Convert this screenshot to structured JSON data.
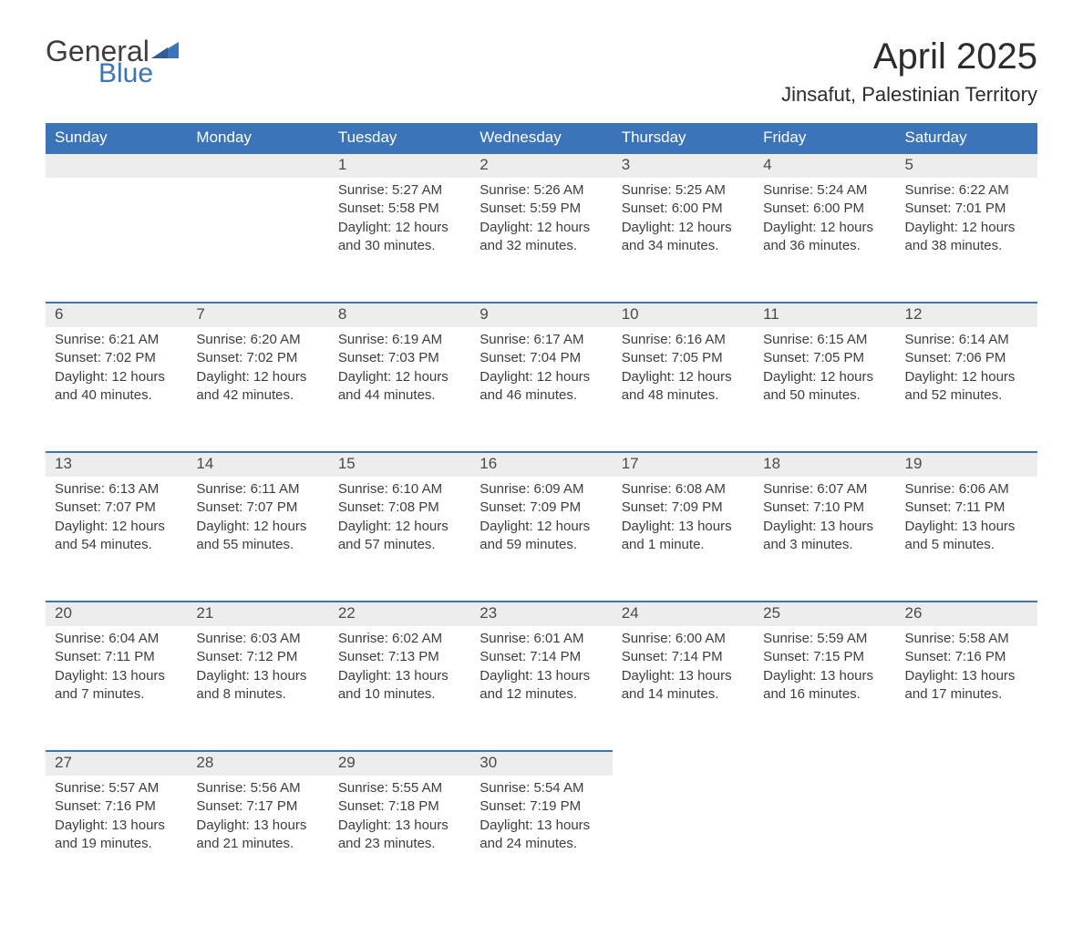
{
  "brand": {
    "general": "General",
    "blue": "Blue",
    "accent": "#3b74b9"
  },
  "title": "April 2025",
  "location": "Jinsafut, Palestinian Territory",
  "day_headers": [
    "Sunday",
    "Monday",
    "Tuesday",
    "Wednesday",
    "Thursday",
    "Friday",
    "Saturday"
  ],
  "colors": {
    "header_bg": "#3b74b9",
    "header_text": "#ffffff",
    "daynum_bg": "#ededed",
    "daynum_border": "#3b74b9",
    "text": "#3d3d3d",
    "background": "#ffffff"
  },
  "weeks": [
    [
      null,
      null,
      {
        "n": "1",
        "sunrise": "5:27 AM",
        "sunset": "5:58 PM",
        "daylight": "12 hours and 30 minutes."
      },
      {
        "n": "2",
        "sunrise": "5:26 AM",
        "sunset": "5:59 PM",
        "daylight": "12 hours and 32 minutes."
      },
      {
        "n": "3",
        "sunrise": "5:25 AM",
        "sunset": "6:00 PM",
        "daylight": "12 hours and 34 minutes."
      },
      {
        "n": "4",
        "sunrise": "5:24 AM",
        "sunset": "6:00 PM",
        "daylight": "12 hours and 36 minutes."
      },
      {
        "n": "5",
        "sunrise": "6:22 AM",
        "sunset": "7:01 PM",
        "daylight": "12 hours and 38 minutes."
      }
    ],
    [
      {
        "n": "6",
        "sunrise": "6:21 AM",
        "sunset": "7:02 PM",
        "daylight": "12 hours and 40 minutes."
      },
      {
        "n": "7",
        "sunrise": "6:20 AM",
        "sunset": "7:02 PM",
        "daylight": "12 hours and 42 minutes."
      },
      {
        "n": "8",
        "sunrise": "6:19 AM",
        "sunset": "7:03 PM",
        "daylight": "12 hours and 44 minutes."
      },
      {
        "n": "9",
        "sunrise": "6:17 AM",
        "sunset": "7:04 PM",
        "daylight": "12 hours and 46 minutes."
      },
      {
        "n": "10",
        "sunrise": "6:16 AM",
        "sunset": "7:05 PM",
        "daylight": "12 hours and 48 minutes."
      },
      {
        "n": "11",
        "sunrise": "6:15 AM",
        "sunset": "7:05 PM",
        "daylight": "12 hours and 50 minutes."
      },
      {
        "n": "12",
        "sunrise": "6:14 AM",
        "sunset": "7:06 PM",
        "daylight": "12 hours and 52 minutes."
      }
    ],
    [
      {
        "n": "13",
        "sunrise": "6:13 AM",
        "sunset": "7:07 PM",
        "daylight": "12 hours and 54 minutes."
      },
      {
        "n": "14",
        "sunrise": "6:11 AM",
        "sunset": "7:07 PM",
        "daylight": "12 hours and 55 minutes."
      },
      {
        "n": "15",
        "sunrise": "6:10 AM",
        "sunset": "7:08 PM",
        "daylight": "12 hours and 57 minutes."
      },
      {
        "n": "16",
        "sunrise": "6:09 AM",
        "sunset": "7:09 PM",
        "daylight": "12 hours and 59 minutes."
      },
      {
        "n": "17",
        "sunrise": "6:08 AM",
        "sunset": "7:09 PM",
        "daylight": "13 hours and 1 minute."
      },
      {
        "n": "18",
        "sunrise": "6:07 AM",
        "sunset": "7:10 PM",
        "daylight": "13 hours and 3 minutes."
      },
      {
        "n": "19",
        "sunrise": "6:06 AM",
        "sunset": "7:11 PM",
        "daylight": "13 hours and 5 minutes."
      }
    ],
    [
      {
        "n": "20",
        "sunrise": "6:04 AM",
        "sunset": "7:11 PM",
        "daylight": "13 hours and 7 minutes."
      },
      {
        "n": "21",
        "sunrise": "6:03 AM",
        "sunset": "7:12 PM",
        "daylight": "13 hours and 8 minutes."
      },
      {
        "n": "22",
        "sunrise": "6:02 AM",
        "sunset": "7:13 PM",
        "daylight": "13 hours and 10 minutes."
      },
      {
        "n": "23",
        "sunrise": "6:01 AM",
        "sunset": "7:14 PM",
        "daylight": "13 hours and 12 minutes."
      },
      {
        "n": "24",
        "sunrise": "6:00 AM",
        "sunset": "7:14 PM",
        "daylight": "13 hours and 14 minutes."
      },
      {
        "n": "25",
        "sunrise": "5:59 AM",
        "sunset": "7:15 PM",
        "daylight": "13 hours and 16 minutes."
      },
      {
        "n": "26",
        "sunrise": "5:58 AM",
        "sunset": "7:16 PM",
        "daylight": "13 hours and 17 minutes."
      }
    ],
    [
      {
        "n": "27",
        "sunrise": "5:57 AM",
        "sunset": "7:16 PM",
        "daylight": "13 hours and 19 minutes."
      },
      {
        "n": "28",
        "sunrise": "5:56 AM",
        "sunset": "7:17 PM",
        "daylight": "13 hours and 21 minutes."
      },
      {
        "n": "29",
        "sunrise": "5:55 AM",
        "sunset": "7:18 PM",
        "daylight": "13 hours and 23 minutes."
      },
      {
        "n": "30",
        "sunrise": "5:54 AM",
        "sunset": "7:19 PM",
        "daylight": "13 hours and 24 minutes."
      },
      null,
      null,
      null
    ]
  ],
  "labels": {
    "sunrise": "Sunrise: ",
    "sunset": "Sunset: ",
    "daylight": "Daylight: "
  }
}
